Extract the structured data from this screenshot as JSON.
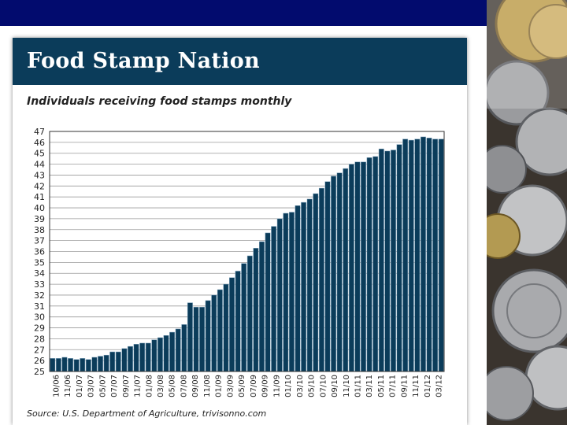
{
  "colors": {
    "topbar": "#020b6e",
    "title_band": "#0b3c5a",
    "bar": "#0b3c5a",
    "bar_edge": "#7fa3bc"
  },
  "icons": {
    "coins_photo": "coin-pile-photo-icon"
  },
  "header": {
    "title": "Food Stamp Nation"
  },
  "chart_data": {
    "type": "bar",
    "title": "Individuals receiving food stamps monthly",
    "xlabel": "",
    "ylabel": "",
    "ylim": [
      25,
      47
    ],
    "yticks": [
      25,
      26,
      27,
      28,
      29,
      30,
      31,
      32,
      33,
      34,
      35,
      36,
      37,
      38,
      39,
      40,
      41,
      42,
      43,
      44,
      45,
      46,
      47
    ],
    "grid": true,
    "xtick_labels": [
      "10/06",
      "11/06",
      "01/07",
      "03/07",
      "05/07",
      "07/07",
      "09/07",
      "11/07",
      "01/08",
      "03/08",
      "05/08",
      "07/08",
      "09/08",
      "11/08",
      "01/09",
      "03/09",
      "05/09",
      "07/09",
      "09/09",
      "11/09",
      "01/10",
      "03/10",
      "05/10",
      "07/10",
      "09/10",
      "11/10",
      "01/11",
      "03/11",
      "05/11",
      "07/11",
      "09/11",
      "11/11",
      "01/12",
      "03/12"
    ],
    "values": [
      26.2,
      26.2,
      26.3,
      26.2,
      26.1,
      26.2,
      26.1,
      26.3,
      26.4,
      26.5,
      26.8,
      26.8,
      27.1,
      27.3,
      27.5,
      27.6,
      27.6,
      27.9,
      28.1,
      28.3,
      28.6,
      28.9,
      29.3,
      31.3,
      30.9,
      30.9,
      31.5,
      32.0,
      32.5,
      33.0,
      33.6,
      34.2,
      34.9,
      35.6,
      36.3,
      36.9,
      37.7,
      38.3,
      39.0,
      39.5,
      39.6,
      40.2,
      40.5,
      40.8,
      41.3,
      41.8,
      42.4,
      42.9,
      43.2,
      43.6,
      44.0,
      44.2,
      44.2,
      44.6,
      44.7,
      45.4,
      45.2,
      45.3,
      45.8,
      46.3,
      46.2,
      46.3,
      46.5,
      46.4,
      46.3,
      46.3
    ]
  },
  "source": "Source: U.S. Department of Agriculture, trivisonno.com"
}
